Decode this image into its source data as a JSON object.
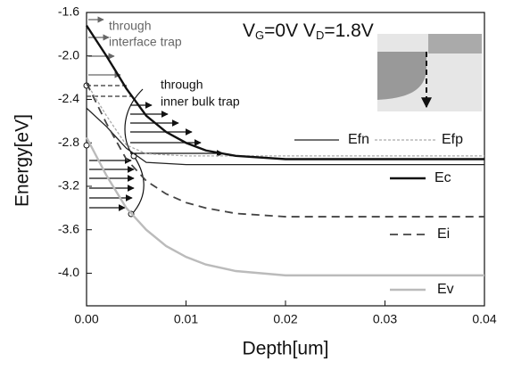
{
  "chart_data": {
    "type": "line",
    "xlabel": "Depth[um]",
    "ylabel": "Energy[eV]",
    "annotations": [
      "through",
      "interface trap",
      "through",
      "inner bulk trap"
    ],
    "bias": [
      "V",
      "G",
      "=0V V",
      "D",
      "=1.8V"
    ],
    "x": [
      0,
      0.002,
      0.004,
      0.006,
      0.008,
      0.01,
      0.012,
      0.015,
      0.02,
      0.03,
      0.04
    ],
    "series": [
      {
        "name": "Efn",
        "color": "#222222",
        "line_style": "solid",
        "values": [
          -2.48,
          -2.65,
          -2.85,
          -2.98,
          -2.99,
          -3.0,
          -3.0,
          -3.0,
          -3.0,
          -3.0,
          -3.0
        ]
      },
      {
        "name": "Efp",
        "color": "#aaaaaa",
        "line_style": "dotted",
        "values": [
          -2.25,
          -2.55,
          -2.82,
          -2.9,
          -2.91,
          -2.92,
          -2.92,
          -2.92,
          -2.92,
          -2.92,
          -2.92
        ]
      },
      {
        "name": "Ec",
        "color": "#111111",
        "line_style": "thick",
        "values": [
          -1.72,
          -2.0,
          -2.3,
          -2.55,
          -2.7,
          -2.8,
          -2.87,
          -2.92,
          -2.95,
          -2.95,
          -2.95
        ]
      },
      {
        "name": "Ei",
        "color": "#444444",
        "line_style": "dashed",
        "values": [
          -2.25,
          -2.62,
          -2.95,
          -3.15,
          -3.27,
          -3.35,
          -3.4,
          -3.45,
          -3.48,
          -3.48,
          -3.48
        ]
      },
      {
        "name": "Ev",
        "color": "#bbbbbb",
        "line_style": "thick",
        "values": [
          -2.75,
          -3.1,
          -3.4,
          -3.6,
          -3.75,
          -3.85,
          -3.92,
          -3.98,
          -4.02,
          -4.02,
          -4.02
        ]
      }
    ],
    "xlim": [
      0,
      0.04
    ],
    "xticks": [
      {
        "value": 0,
        "label": "0.00"
      },
      {
        "value": 0.01,
        "label": "0.01"
      },
      {
        "value": 0.02,
        "label": "0.02"
      },
      {
        "value": 0.03,
        "label": "0.03"
      },
      {
        "value": 0.04,
        "label": "0.04"
      }
    ],
    "ylim": [
      -4.3,
      -1.6
    ],
    "yticks": [
      -1.6,
      {
        "value": -2,
        "label": "-2.0"
      },
      -2.4,
      -2.8,
      -3.2,
      -3.6,
      {
        "value": -4,
        "label": "-4.0"
      }
    ],
    "grid": false
  }
}
